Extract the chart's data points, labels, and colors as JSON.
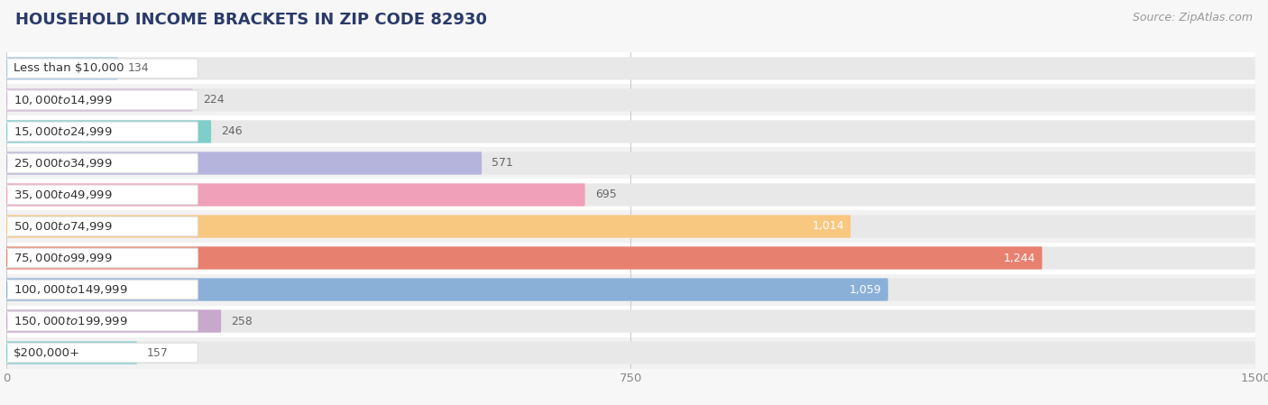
{
  "title": "HOUSEHOLD INCOME BRACKETS IN ZIP CODE 82930",
  "source": "Source: ZipAtlas.com",
  "categories": [
    "Less than $10,000",
    "$10,000 to $14,999",
    "$15,000 to $24,999",
    "$25,000 to $34,999",
    "$35,000 to $49,999",
    "$50,000 to $74,999",
    "$75,000 to $99,999",
    "$100,000 to $149,999",
    "$150,000 to $199,999",
    "$200,000+"
  ],
  "values": [
    134,
    224,
    246,
    571,
    695,
    1014,
    1244,
    1059,
    258,
    157
  ],
  "bar_colors": [
    "#a8c8e8",
    "#d4b8d8",
    "#7ececa",
    "#b4b4dc",
    "#f0a0b8",
    "#f8c880",
    "#e88070",
    "#8ab0d8",
    "#c8a8cc",
    "#7ececa"
  ],
  "xlim_max": 1500,
  "xticks": [
    0,
    750,
    1500
  ],
  "bg_color": "#f7f7f7",
  "row_colors": [
    "#ffffff",
    "#f2f2f2"
  ],
  "bar_bg_color": "#e8e8e8",
  "pill_bg": "#ffffff",
  "title_fontsize": 13,
  "label_fontsize": 9.5,
  "value_fontsize": 9,
  "source_fontsize": 9,
  "value_inside_threshold": 900,
  "title_color": "#2a3a6a",
  "label_color": "#333333",
  "value_color_inside": "#ffffff",
  "value_color_outside": "#666666",
  "source_color": "#999999",
  "tick_color": "#888888"
}
